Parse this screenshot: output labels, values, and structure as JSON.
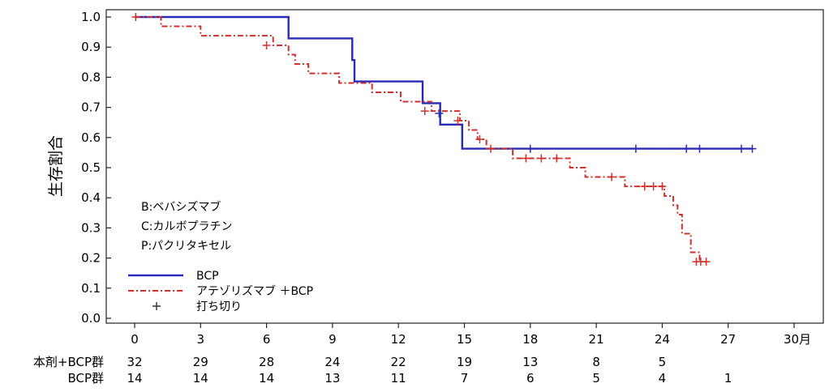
{
  "chart_data": {
    "type": "line",
    "ylabel": "生存割合",
    "xlim": [
      0,
      30
    ],
    "ylim": [
      0,
      1.0
    ],
    "x_ticks": [
      {
        "value": 0,
        "label": "0"
      },
      {
        "value": 3,
        "label": "3"
      },
      {
        "value": 6,
        "label": "6"
      },
      {
        "value": 9,
        "label": "9"
      },
      {
        "value": 12,
        "label": "12"
      },
      {
        "value": 15,
        "label": "15"
      },
      {
        "value": 18,
        "label": "18"
      },
      {
        "value": 21,
        "label": "21"
      },
      {
        "value": 24,
        "label": "24"
      },
      {
        "value": 27,
        "label": "27"
      },
      {
        "value": 30,
        "label": "30月"
      }
    ],
    "y_ticks": [
      {
        "value": 0.0,
        "label": "0.0"
      },
      {
        "value": 0.1,
        "label": "0.1"
      },
      {
        "value": 0.2,
        "label": "0.2"
      },
      {
        "value": 0.3,
        "label": "0.3"
      },
      {
        "value": 0.4,
        "label": "0.4"
      },
      {
        "value": 0.5,
        "label": "0.5"
      },
      {
        "value": 0.6,
        "label": "0.6"
      },
      {
        "value": 0.7,
        "label": "0.7"
      },
      {
        "value": 0.8,
        "label": "0.8"
      },
      {
        "value": 0.9,
        "label": "0.9"
      },
      {
        "value": 1.0,
        "label": "1.0"
      }
    ],
    "grid": false,
    "notes": [
      "B:ベバシズマブ",
      "C:カルボプラチン",
      "P:パクリタキセル"
    ],
    "legend": {
      "position": "bottom-left",
      "items": [
        {
          "label": "BCP",
          "series": 0
        },
        {
          "label": "アテゾリズマブ ＋BCP",
          "series": 1
        },
        {
          "label": "打ち切り",
          "marker": "censor"
        }
      ]
    },
    "series": [
      {
        "name": "BCP",
        "color": "#2a2ab8",
        "style": "solid",
        "steps": [
          [
            0,
            1.0
          ],
          [
            7.0,
            0.929
          ],
          [
            9.9,
            0.857
          ],
          [
            10.0,
            0.786
          ],
          [
            13.1,
            0.714
          ],
          [
            13.9,
            0.643
          ],
          [
            14.9,
            0.563
          ]
        ],
        "censors": [
          [
            13.85,
            0.68
          ],
          [
            18.0,
            0.563
          ],
          [
            22.8,
            0.563
          ],
          [
            25.1,
            0.563
          ],
          [
            25.7,
            0.563
          ],
          [
            27.6,
            0.563
          ],
          [
            28.1,
            0.563
          ]
        ],
        "end_x": 28.1
      },
      {
        "name": "アテゾリズマブ ＋BCP",
        "color": "#d0302e",
        "style": "dashdot",
        "steps": [
          [
            0,
            1.0
          ],
          [
            1.2,
            0.969
          ],
          [
            3.0,
            0.938
          ],
          [
            6.3,
            0.906
          ],
          [
            7.0,
            0.875
          ],
          [
            7.3,
            0.844
          ],
          [
            7.9,
            0.813
          ],
          [
            9.3,
            0.781
          ],
          [
            10.8,
            0.75
          ],
          [
            12.1,
            0.719
          ],
          [
            13.5,
            0.688
          ],
          [
            14.8,
            0.656
          ],
          [
            15.2,
            0.625
          ],
          [
            15.6,
            0.594
          ],
          [
            16.0,
            0.563
          ],
          [
            17.2,
            0.531
          ],
          [
            19.8,
            0.5
          ],
          [
            20.5,
            0.469
          ],
          [
            22.3,
            0.438
          ],
          [
            24.1,
            0.406
          ],
          [
            24.5,
            0.375
          ],
          [
            24.7,
            0.344
          ],
          [
            24.9,
            0.281
          ],
          [
            25.3,
            0.219
          ],
          [
            25.7,
            0.188
          ]
        ],
        "censors": [
          [
            0.05,
            1.0
          ],
          [
            6.0,
            0.906
          ],
          [
            13.2,
            0.688
          ],
          [
            14.7,
            0.656
          ],
          [
            15.7,
            0.594
          ],
          [
            16.2,
            0.563
          ],
          [
            17.8,
            0.531
          ],
          [
            18.5,
            0.531
          ],
          [
            19.2,
            0.531
          ],
          [
            21.7,
            0.469
          ],
          [
            23.2,
            0.438
          ],
          [
            23.6,
            0.438
          ],
          [
            24.0,
            0.438
          ],
          [
            25.55,
            0.188
          ],
          [
            25.75,
            0.188
          ],
          [
            26.0,
            0.188
          ]
        ],
        "end_x": 26.0
      }
    ],
    "risk_table": {
      "x": [
        0,
        3,
        6,
        9,
        12,
        15,
        18,
        21,
        24,
        27
      ],
      "rows": [
        {
          "label": "本剤+BCP群",
          "values": [
            "32",
            "29",
            "28",
            "24",
            "22",
            "19",
            "13",
            "8",
            "5",
            ""
          ]
        },
        {
          "label": "BCP群",
          "values": [
            "14",
            "14",
            "14",
            "13",
            "11",
            "7",
            "6",
            "5",
            "4",
            "1"
          ]
        }
      ]
    }
  }
}
